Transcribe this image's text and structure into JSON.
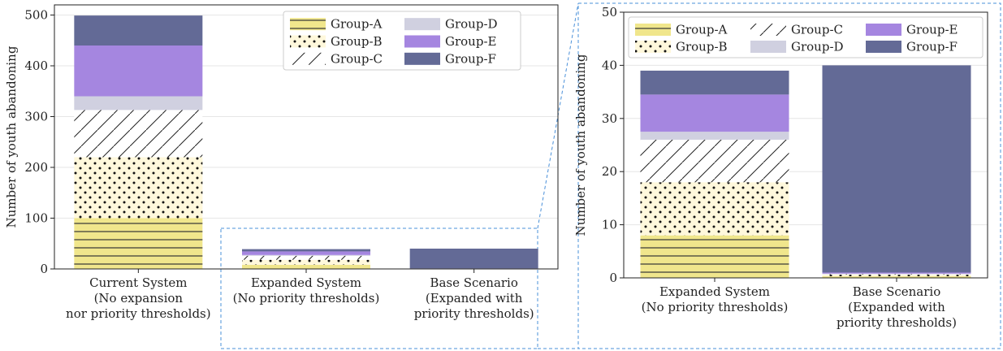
{
  "chart_data": [
    {
      "type": "bar",
      "stacked": true,
      "categories": [
        [
          "Current System",
          "(No expansion",
          "nor priority thresholds)"
        ],
        [
          "Expanded System",
          "(No priority thresholds)"
        ],
        [
          "Base Scenario",
          "(Expanded with",
          "priority thresholds)"
        ]
      ],
      "ylabel": "Number of youth abandoning",
      "ylim": [
        0,
        520
      ],
      "yticks": [
        0,
        100,
        200,
        300,
        400,
        500
      ],
      "grid": true,
      "legend": {
        "position": "top-right",
        "columns": 2
      },
      "series": [
        {
          "name": "Group-A",
          "values": [
            100,
            8,
            0.3
          ],
          "color": "#f0e68c",
          "pattern": "horizontal-lines"
        },
        {
          "name": "Group-B",
          "values": [
            120,
            10,
            0.3
          ],
          "color": "#fff8dc",
          "pattern": "dots"
        },
        {
          "name": "Group-C",
          "values": [
            93,
            8,
            0.1
          ],
          "color": "#ffffff",
          "pattern": "diagonal-lines"
        },
        {
          "name": "Group-D",
          "values": [
            27,
            1.5,
            0.1
          ],
          "color": "#d0d0e0",
          "pattern": "solid"
        },
        {
          "name": "Group-E",
          "values": [
            100,
            7,
            0.2
          ],
          "color": "#a586e0",
          "pattern": "solid"
        },
        {
          "name": "Group-F",
          "values": [
            59,
            4.5,
            39
          ],
          "color": "#636a96",
          "pattern": "solid"
        }
      ]
    },
    {
      "type": "bar",
      "stacked": true,
      "inset_of": "Expanded System and Base Scenario",
      "categories": [
        [
          "Expanded System",
          "(No priority thresholds)"
        ],
        [
          "Base Scenario",
          "(Expanded with",
          "priority thresholds)"
        ]
      ],
      "ylabel": "Number of youth abandoning",
      "ylim": [
        0,
        50
      ],
      "yticks": [
        0,
        10,
        20,
        30,
        40,
        50
      ],
      "grid": true,
      "legend": {
        "position": "top",
        "columns": 3
      },
      "series": [
        {
          "name": "Group-A",
          "values": [
            8,
            0.3
          ],
          "color": "#f0e68c",
          "pattern": "horizontal-lines"
        },
        {
          "name": "Group-B",
          "values": [
            10,
            0.3
          ],
          "color": "#fff8dc",
          "pattern": "dots"
        },
        {
          "name": "Group-C",
          "values": [
            8,
            0.1
          ],
          "color": "#ffffff",
          "pattern": "diagonal-lines"
        },
        {
          "name": "Group-D",
          "values": [
            1.5,
            0.1
          ],
          "color": "#d0d0e0",
          "pattern": "solid"
        },
        {
          "name": "Group-E",
          "values": [
            7,
            0.2
          ],
          "color": "#a586e0",
          "pattern": "solid"
        },
        {
          "name": "Group-F",
          "values": [
            4.5,
            39
          ],
          "color": "#636a96",
          "pattern": "solid"
        }
      ]
    }
  ],
  "zoom_box_color": "#4a90d9"
}
